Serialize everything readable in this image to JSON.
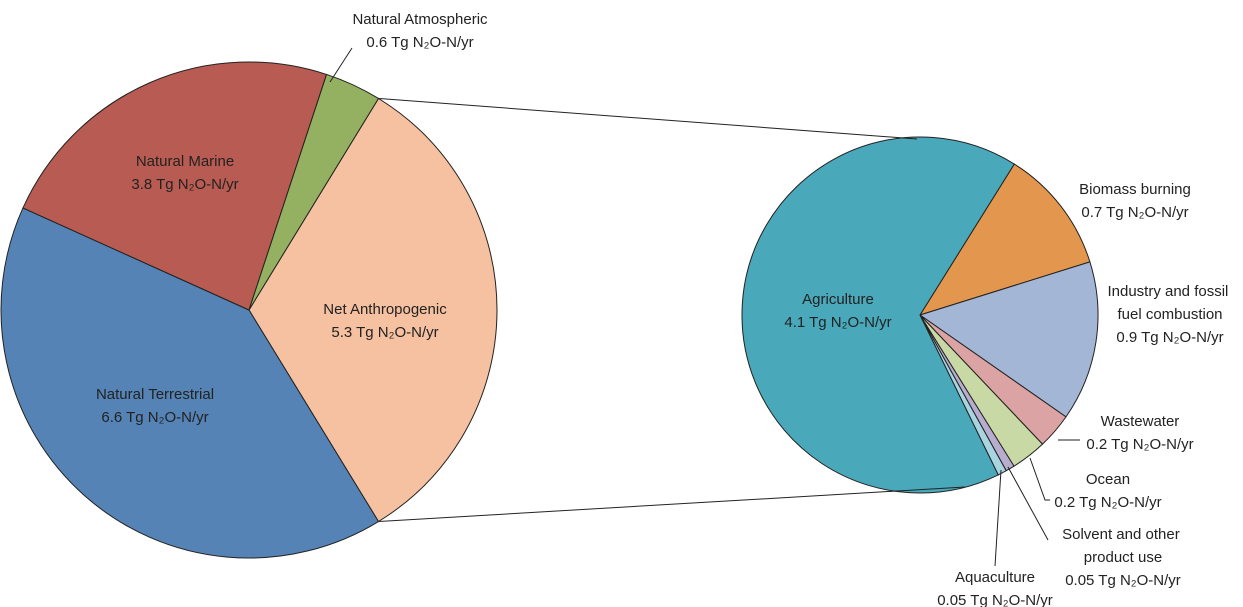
{
  "chart_data": [
    {
      "type": "pie",
      "categories": [
        "Net Anthropogenic",
        "Natural Terrestrial",
        "Natural Marine",
        "Natural Atmospheric"
      ],
      "values": [
        5.3,
        6.6,
        3.8,
        0.6
      ],
      "value_labels": [
        "5.3 Tg N₂O-N/yr",
        "6.6 Tg N₂O-N/yr",
        "3.8 Tg N₂O-N/yr",
        "0.6 Tg N₂O-N/yr"
      ],
      "colors": [
        "#f6c1a0",
        "#5583b5",
        "#b85b52",
        "#93b161"
      ]
    },
    {
      "type": "pie",
      "categories": [
        "Biomass burning",
        "Industry and fossil fuel combustion",
        "Wastewater",
        "Ocean",
        "Solvent and other product use",
        "Aquaculture",
        "Agriculture"
      ],
      "values": [
        0.7,
        0.9,
        0.2,
        0.2,
        0.05,
        0.05,
        4.1
      ],
      "value_labels": [
        "0.7 Tg N₂O-N/yr",
        "0.9 Tg N₂O-N/yr",
        "0.2 Tg N₂O-N/yr",
        "0.2 Tg N₂O-N/yr",
        "0.05 Tg N₂O-N/yr",
        "0.05 Tg N₂O-N/yr",
        "4.1 Tg N₂O-N/yr"
      ],
      "colors": [
        "#e3964d",
        "#a3b6d5",
        "#dba3a3",
        "#c8d9a6",
        "#b8adcf",
        "#a8d5e0",
        "#4aa8bb"
      ]
    }
  ]
}
